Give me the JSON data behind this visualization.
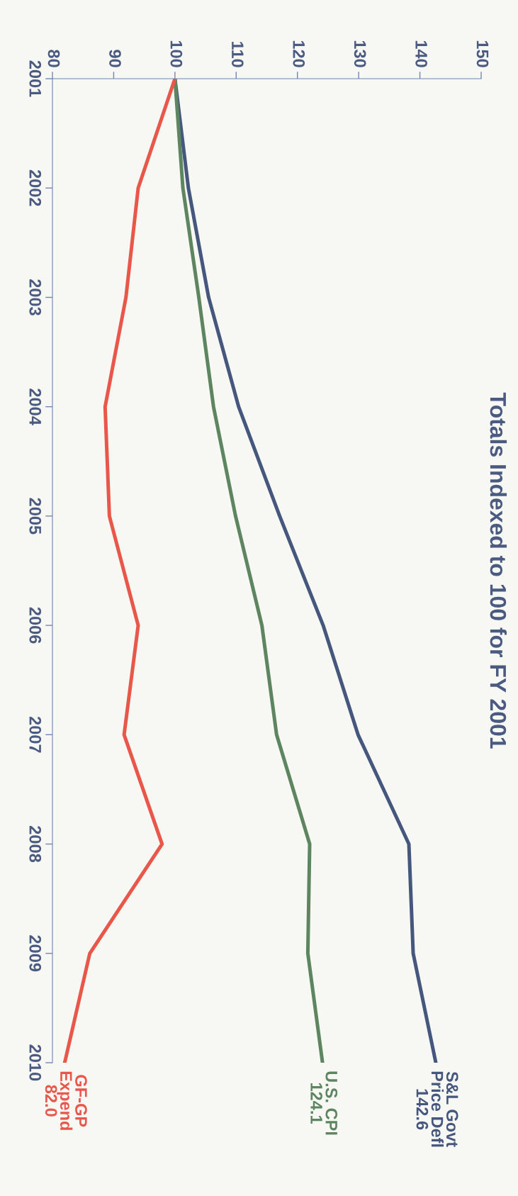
{
  "chart_data": {
    "type": "line",
    "title": "Totals Indexed to 100 for FY 2001",
    "orientation": "horizontal",
    "categories": [
      "2001",
      "2002",
      "2003",
      "2004",
      "2005",
      "2006",
      "2007",
      "2008",
      "2009",
      "2010"
    ],
    "xlim": [
      80,
      150
    ],
    "xticks": [
      80,
      90,
      100,
      110,
      120,
      130,
      140,
      150
    ],
    "grid": false,
    "legend": false,
    "series": [
      {
        "name": "S&L Govt\nPrice Defl",
        "color": "#46577e",
        "values": [
          100,
          102.2,
          105.5,
          110.4,
          117.1,
          124.2,
          129.9,
          138.2,
          138.9,
          142.6
        ],
        "value_labels": [
          null,
          null,
          null,
          null,
          null,
          null,
          null,
          null,
          null,
          "142.6"
        ]
      },
      {
        "name": "U.S. CPI",
        "color": "#5c8560",
        "values": [
          100,
          101.3,
          103.9,
          106.3,
          109.9,
          114.2,
          116.6,
          122.0,
          121.7,
          124.1
        ],
        "value_labels": [
          null,
          null,
          null,
          null,
          null,
          null,
          null,
          null,
          null,
          "124.1"
        ]
      },
      {
        "name": "GF-GP\nExpend",
        "color": "#e8574a",
        "values": [
          100,
          94.0,
          92.0,
          88.6,
          89.3,
          94.0,
          91.7,
          97.9,
          86.1,
          82.0
        ],
        "value_labels": [
          null,
          null,
          null,
          null,
          null,
          null,
          null,
          null,
          null,
          "82.0"
        ]
      }
    ]
  }
}
